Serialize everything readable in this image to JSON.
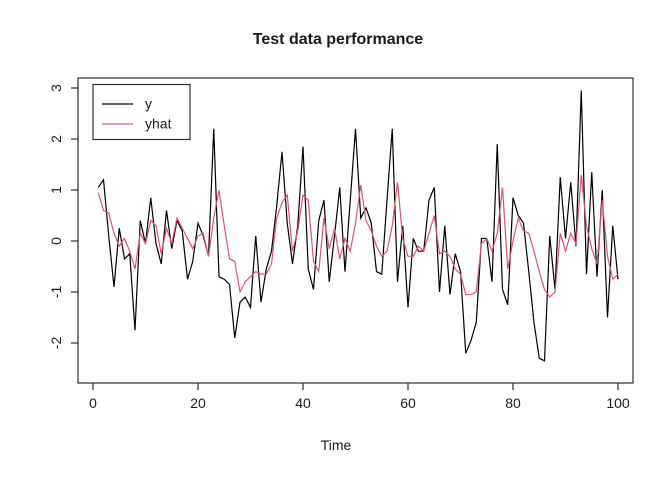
{
  "chart_data": {
    "type": "line",
    "title": "Test data performance",
    "xlabel": "Time",
    "ylabel": "",
    "x_range": [
      1,
      100
    ],
    "xlim": [
      -2.96,
      103.96
    ],
    "ylim": [
      -2.78,
      3.2
    ],
    "xticks": [
      0,
      20,
      40,
      60,
      80,
      100
    ],
    "yticks": [
      -2,
      -1,
      0,
      1,
      2,
      3
    ],
    "grid": false,
    "legend_position": "topleft",
    "legend": {
      "entries": [
        {
          "label": "y",
          "color": "#000000"
        },
        {
          "label": "yhat",
          "color": "#DF536B"
        }
      ]
    },
    "colors": {
      "y": "#000000",
      "yhat": "#DF536B",
      "axis": "#2e2e2e"
    },
    "series": [
      {
        "name": "y",
        "color": "#000000",
        "values": [
          1.05,
          1.2,
          0.1,
          -0.9,
          0.25,
          -0.35,
          -0.25,
          -1.75,
          0.4,
          -0.05,
          0.85,
          -0.05,
          -0.45,
          0.6,
          -0.15,
          0.4,
          0.2,
          -0.75,
          -0.4,
          0.35,
          0.1,
          -0.3,
          2.2,
          -0.7,
          -0.75,
          -0.85,
          -1.9,
          -1.2,
          -1.1,
          -1.3,
          0.1,
          -1.2,
          -0.55,
          -0.2,
          0.7,
          1.75,
          0.35,
          -0.45,
          0.3,
          1.85,
          -0.55,
          -0.95,
          0.4,
          0.8,
          -0.8,
          0.1,
          1.05,
          -0.6,
          0.8,
          2.2,
          0.45,
          0.65,
          0.35,
          -0.6,
          -0.65,
          0.8,
          2.2,
          -0.8,
          0.3,
          -1.3,
          0.05,
          -0.2,
          -0.2,
          0.8,
          1.05,
          -1.0,
          0.3,
          -1.05,
          -0.25,
          -0.6,
          -2.2,
          -1.95,
          -1.6,
          0.05,
          0.05,
          -0.8,
          1.9,
          -0.95,
          -1.25,
          0.85,
          0.5,
          0.35,
          -0.6,
          -1.6,
          -2.3,
          -2.35,
          0.1,
          -0.95,
          1.25,
          0.05,
          1.15,
          -0.1,
          2.95,
          -0.65,
          1.35,
          -0.7,
          1.0,
          -1.5,
          0.3,
          -0.75
        ]
      },
      {
        "name": "yhat",
        "color": "#DF536B",
        "values": [
          0.95,
          0.6,
          0.55,
          0.15,
          -0.1,
          0.05,
          -0.2,
          -0.55,
          0.15,
          -0.05,
          0.4,
          0.3,
          -0.25,
          0.25,
          -0.05,
          0.45,
          0.25,
          0.05,
          -0.15,
          0.1,
          0.15,
          -0.3,
          0.45,
          1.0,
          0.3,
          -0.35,
          -0.4,
          -1.0,
          -0.8,
          -0.7,
          -0.6,
          -0.65,
          -0.65,
          -0.45,
          0.45,
          0.75,
          0.9,
          -0.2,
          0.2,
          0.9,
          0.8,
          -0.4,
          -0.6,
          0.45,
          -0.15,
          0.25,
          -0.35,
          0.05,
          -0.2,
          0.35,
          1.1,
          0.4,
          0.2,
          -0.1,
          -0.3,
          -0.2,
          0.3,
          1.15,
          0.05,
          -0.3,
          -0.3,
          -0.1,
          -0.2,
          0.15,
          0.5,
          -0.25,
          -0.2,
          -0.3,
          -0.55,
          -0.65,
          -1.05,
          -1.05,
          -1.0,
          -0.05,
          0.05,
          -0.2,
          0.15,
          1.05,
          -0.55,
          0.0,
          0.45,
          0.2,
          0.15,
          -0.2,
          -0.6,
          -0.95,
          -1.1,
          -1.0,
          0.15,
          -0.2,
          0.15,
          -0.05,
          1.3,
          0.3,
          -0.15,
          -0.45,
          0.8,
          -0.3,
          -0.75,
          -0.65
        ]
      }
    ]
  }
}
